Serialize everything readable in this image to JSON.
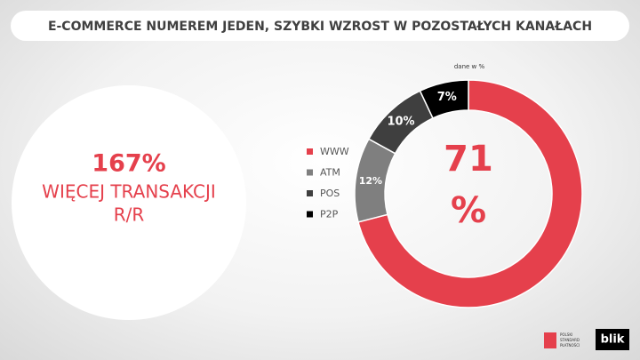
{
  "title": "E-COMMERCE NUMEREM JEDEN, SZYBKI WZROST W POZOSTAŁYCH KANAŁACH",
  "highlight": {
    "value": "167%",
    "line1": "WIĘCEJ TRANSAKCJI",
    "line2": "R/R"
  },
  "logos": {
    "psp": [
      "POLSKI",
      "STANDARD",
      "PŁATNOŚCI"
    ],
    "blik": "blik"
  },
  "chart_data": {
    "type": "pie",
    "subtitle": "dane w %",
    "categories": [
      "WWW",
      "ATM",
      "POS",
      "P2P"
    ],
    "values": [
      71,
      12,
      10,
      7
    ],
    "value_labels": [
      "71 %",
      "12%",
      "10%",
      "7%"
    ],
    "colors": [
      "#e5404c",
      "#7f7f7f",
      "#3f3f3f",
      "#000000"
    ]
  }
}
